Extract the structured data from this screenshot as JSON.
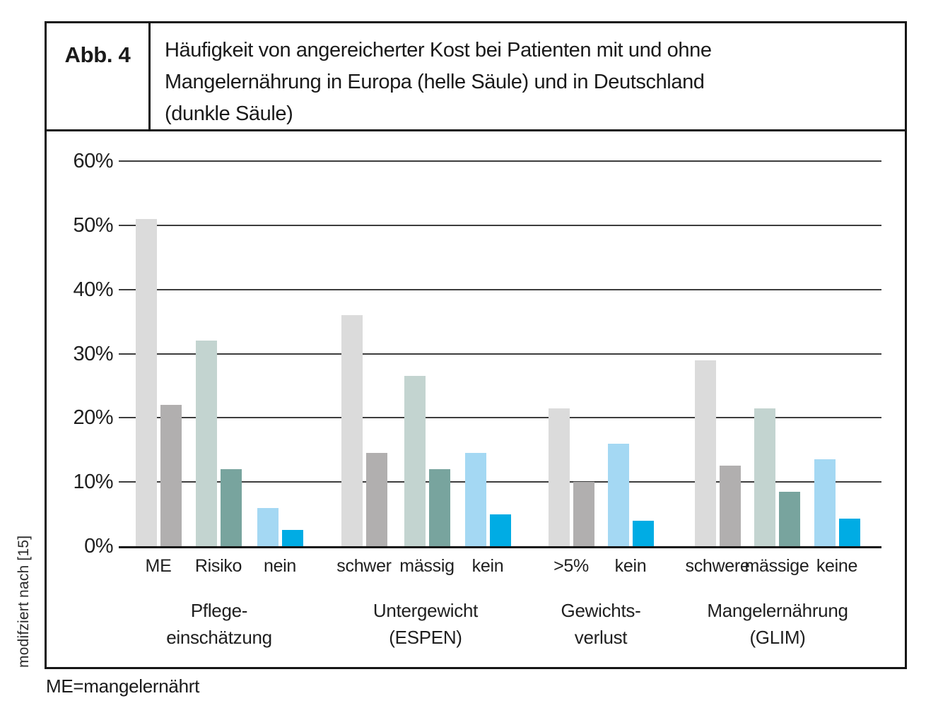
{
  "figure": {
    "label": "Abb. 4",
    "title_lines": [
      "Häufigkeit von angereicherter Kost bei Patienten mit und ohne",
      "Mangelernährung in Europa (helle Säule) und in Deutschland",
      "(dunkle Säule)"
    ],
    "source_note": "modifziert nach [15]",
    "footnote": "ME=mangelernährt"
  },
  "chart_data": {
    "type": "bar",
    "title": "Häufigkeit von angereicherter Kost bei Patienten mit und ohne Mangelernährung in Europa (helle Säule) und in Deutschland (dunkle Säule)",
    "xlabel": "",
    "ylabel": "",
    "ylim": [
      0,
      60
    ],
    "ytick_step": 10,
    "ytick_labels": [
      "0%",
      "10%",
      "20%",
      "30%",
      "40%",
      "50%",
      "60%"
    ],
    "grid": true,
    "legend_position": "none (series explained in title)",
    "series_names": [
      "Europa (helle Säule)",
      "Deutschland (dunkle Säule)"
    ],
    "axis_color": "#141414",
    "gridline_color": "#3d3d3d",
    "groups": [
      {
        "label_lines": [
          "Pflege-",
          "einschätzung"
        ],
        "categories": [
          {
            "label": "ME",
            "europa": 51,
            "deutschland": 22,
            "color_light": "#dbdbdb",
            "color_dark": "#b1afaf"
          },
          {
            "label": "Risiko",
            "europa": 32,
            "deutschland": 12,
            "color_light": "#c3d4d0",
            "color_dark": "#78a49e"
          },
          {
            "label": "nein",
            "europa": 6,
            "deutschland": 2.5,
            "color_light": "#a4d8f3",
            "color_dark": "#00ace4"
          }
        ]
      },
      {
        "label_lines": [
          "Untergewicht",
          "(ESPEN)"
        ],
        "categories": [
          {
            "label": "schwer",
            "europa": 36,
            "deutschland": 14.5,
            "color_light": "#dbdbdb",
            "color_dark": "#b1afaf"
          },
          {
            "label": "mässig",
            "europa": 26.5,
            "deutschland": 12,
            "color_light": "#c3d4d0",
            "color_dark": "#78a49e"
          },
          {
            "label": "kein",
            "europa": 14.5,
            "deutschland": 5,
            "color_light": "#a4d8f3",
            "color_dark": "#00ace4"
          }
        ]
      },
      {
        "label_lines": [
          "Gewichts-",
          "verlust"
        ],
        "categories": [
          {
            "label": ">5%",
            "europa": 21.5,
            "deutschland": 10,
            "color_light": "#dbdbdb",
            "color_dark": "#b1afaf"
          },
          {
            "label": "kein",
            "europa": 16,
            "deutschland": 4,
            "color_light": "#a4d8f3",
            "color_dark": "#00ace4"
          }
        ]
      },
      {
        "label_lines": [
          "Mangelernährung",
          "(GLIM)"
        ],
        "categories": [
          {
            "label": "schwere",
            "europa": 29,
            "deutschland": 12.5,
            "color_light": "#dbdbdb",
            "color_dark": "#b1afaf"
          },
          {
            "label": "mässige",
            "europa": 21.5,
            "deutschland": 8.5,
            "color_light": "#c3d4d0",
            "color_dark": "#78a49e"
          },
          {
            "label": "keine",
            "europa": 13.5,
            "deutschland": 4.3,
            "color_light": "#a4d8f3",
            "color_dark": "#00ace4"
          }
        ]
      }
    ]
  }
}
